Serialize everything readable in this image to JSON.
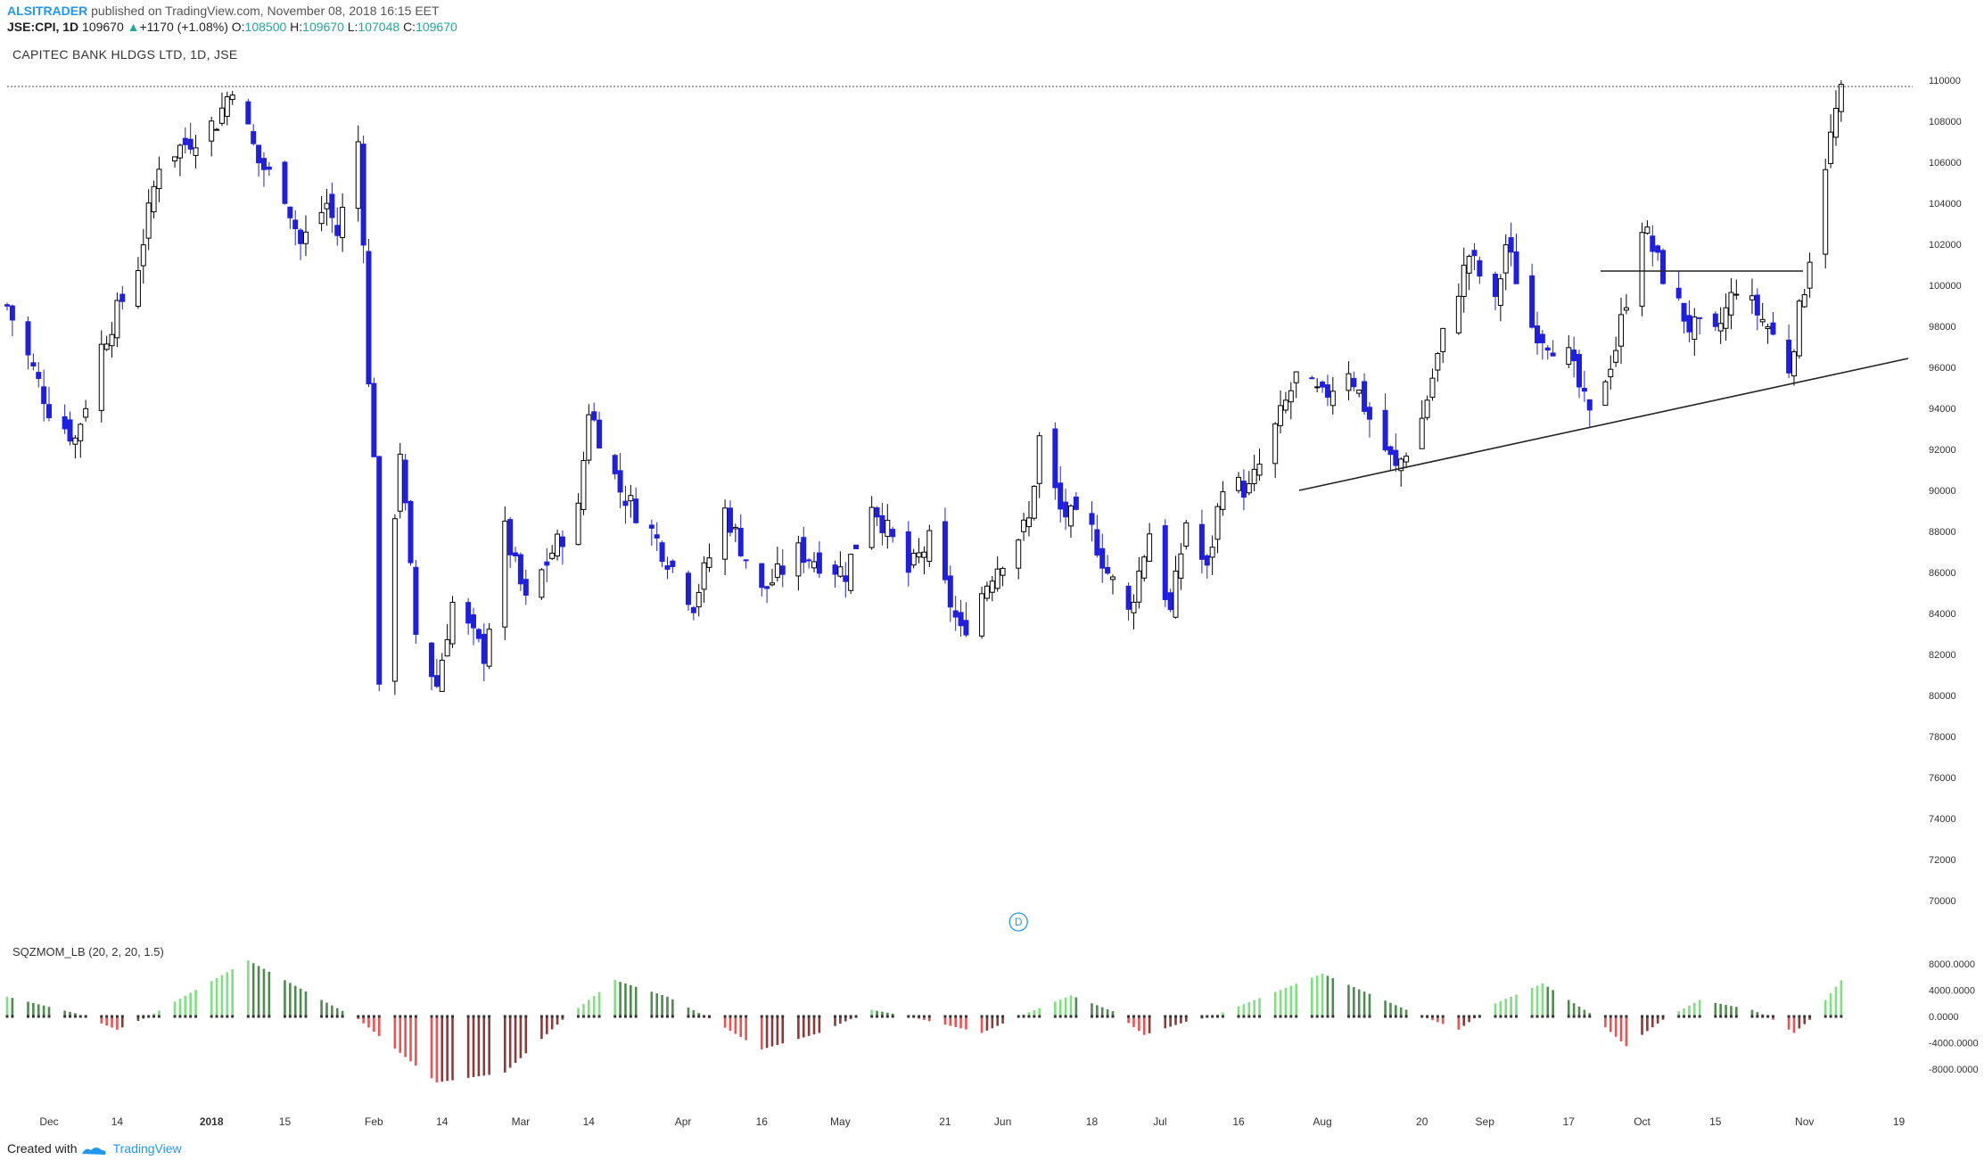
{
  "header": {
    "author": "ALSITRADER",
    "published": "published on TradingView.com, November 08, 2018 16:15 EET",
    "symbol": "JSE:CPI, 1D",
    "last": "109670",
    "change": "+1170 (+1.08%)",
    "o_label": "O:",
    "o_value": "108500",
    "h_label": "H:",
    "h_value": "109670",
    "l_label": "L:",
    "l_value": "107048",
    "c_label": "C:",
    "c_value": "109670"
  },
  "chart_title": "CAPITEC BANK HLDGS LTD, 1D, JSE",
  "indicator_label": "SQZMOM_LB (20, 2, 20, 1.5)",
  "footer": {
    "created_with": "Created with",
    "brand": "TradingView"
  },
  "dividend_markers": [
    {
      "label": "D",
      "day": 193
    },
    {
      "label": "D",
      "day": 501
    }
  ],
  "colors": {
    "bull_body": "#ffffff",
    "bear_body": "#1f1fe0",
    "wick": "#000000",
    "mom_lime": "#7ee07e",
    "mom_green": "#4f8a4f",
    "mom_red": "#f05050",
    "mom_maroon": "#8b3a3a",
    "accent": "#2196f3"
  },
  "chart_data": [
    {
      "type": "candlestick",
      "title": "CAPITEC BANK HLDGS LTD, 1D, JSE",
      "ylim": [
        70000,
        110000
      ],
      "yticks": [
        110000,
        108000,
        106000,
        104000,
        102000,
        100000,
        98000,
        96000,
        94000,
        92000,
        90000,
        88000,
        86000,
        84000,
        82000,
        80000,
        78000,
        76000,
        74000,
        72000,
        70000
      ],
      "xlim": [
        "2017-11-23",
        "2018-11-23"
      ],
      "xticks": [
        {
          "label": "Dec",
          "date": "2017-12-01"
        },
        {
          "label": "14",
          "date": "2017-12-14"
        },
        {
          "label": "2018",
          "date": "2018-01-01",
          "bold": true
        },
        {
          "label": "15",
          "date": "2018-01-15"
        },
        {
          "label": "Feb",
          "date": "2018-02-01"
        },
        {
          "label": "14",
          "date": "2018-02-14"
        },
        {
          "label": "Mar",
          "date": "2018-03-01"
        },
        {
          "label": "14",
          "date": "2018-03-14"
        },
        {
          "label": "Apr",
          "date": "2018-04-01"
        },
        {
          "label": "16",
          "date": "2018-04-16"
        },
        {
          "label": "May",
          "date": "2018-05-01"
        },
        {
          "label": "21",
          "date": "2018-05-21"
        },
        {
          "label": "Jun",
          "date": "2018-06-01"
        },
        {
          "label": "18",
          "date": "2018-06-18"
        },
        {
          "label": "Jul",
          "date": "2018-07-01"
        },
        {
          "label": "16",
          "date": "2018-07-16"
        },
        {
          "label": "Aug",
          "date": "2018-08-01"
        },
        {
          "label": "20",
          "date": "2018-08-20"
        },
        {
          "label": "Sep",
          "date": "2018-09-01"
        },
        {
          "label": "17",
          "date": "2018-09-17"
        },
        {
          "label": "Oct",
          "date": "2018-10-01"
        },
        {
          "label": "15",
          "date": "2018-10-15"
        },
        {
          "label": "Nov",
          "date": "2018-11-01"
        },
        {
          "label": "19",
          "date": "2018-11-19"
        }
      ],
      "anchors": [
        {
          "date": "2017-11-23",
          "close": 99000
        },
        {
          "date": "2017-12-01",
          "close": 94000
        },
        {
          "date": "2017-12-06",
          "close": 92500
        },
        {
          "date": "2017-12-11",
          "close": 97000
        },
        {
          "date": "2017-12-18",
          "close": 101000
        },
        {
          "date": "2017-12-22",
          "close": 106000
        },
        {
          "date": "2018-01-02",
          "close": 108000
        },
        {
          "date": "2018-01-05",
          "close": 109800
        },
        {
          "date": "2018-01-10",
          "close": 106000
        },
        {
          "date": "2018-01-15",
          "close": 104500
        },
        {
          "date": "2018-01-18",
          "close": 102000
        },
        {
          "date": "2018-01-23",
          "close": 104000
        },
        {
          "date": "2018-01-25",
          "close": 102500
        },
        {
          "date": "2018-01-29",
          "close": 107000
        },
        {
          "date": "2018-01-30",
          "close": 102500
        },
        {
          "date": "2018-01-31",
          "close": 95000
        },
        {
          "date": "2018-02-01",
          "close": 92000
        },
        {
          "date": "2018-02-02",
          "close": 80000
        },
        {
          "date": "2018-02-06",
          "close": 92000
        },
        {
          "date": "2018-02-09",
          "close": 83000
        },
        {
          "date": "2018-02-13",
          "close": 80500
        },
        {
          "date": "2018-02-16",
          "close": 84500
        },
        {
          "date": "2018-02-22",
          "close": 82000
        },
        {
          "date": "2018-02-26",
          "close": 88000
        },
        {
          "date": "2018-03-02",
          "close": 84500
        },
        {
          "date": "2018-03-07",
          "close": 87000
        },
        {
          "date": "2018-03-12",
          "close": 89000
        },
        {
          "date": "2018-03-14",
          "close": 94000
        },
        {
          "date": "2018-03-20",
          "close": 90000
        },
        {
          "date": "2018-03-26",
          "close": 88000
        },
        {
          "date": "2018-04-03",
          "close": 84500
        },
        {
          "date": "2018-04-09",
          "close": 89000
        },
        {
          "date": "2018-04-16",
          "close": 85000
        },
        {
          "date": "2018-04-23",
          "close": 87000
        },
        {
          "date": "2018-05-02",
          "close": 86000
        },
        {
          "date": "2018-05-07",
          "close": 89500
        },
        {
          "date": "2018-05-14",
          "close": 86000
        },
        {
          "date": "2018-05-18",
          "close": 87500
        },
        {
          "date": "2018-05-24",
          "close": 83000
        },
        {
          "date": "2018-05-30",
          "close": 86000
        },
        {
          "date": "2018-06-06",
          "close": 88500
        },
        {
          "date": "2018-06-08",
          "close": 92500
        },
        {
          "date": "2018-06-12",
          "close": 89000
        },
        {
          "date": "2018-06-18",
          "close": 88000
        },
        {
          "date": "2018-06-21",
          "close": 86000
        },
        {
          "date": "2018-06-25",
          "close": 84000
        },
        {
          "date": "2018-06-29",
          "close": 88000
        },
        {
          "date": "2018-07-03",
          "close": 84000
        },
        {
          "date": "2018-07-06",
          "close": 88500
        },
        {
          "date": "2018-07-10",
          "close": 86000
        },
        {
          "date": "2018-07-13",
          "close": 90500
        },
        {
          "date": "2018-07-18",
          "close": 90000
        },
        {
          "date": "2018-07-23",
          "close": 93000
        },
        {
          "date": "2018-07-27",
          "close": 95500
        },
        {
          "date": "2018-08-01",
          "close": 94500
        },
        {
          "date": "2018-08-06",
          "close": 96000
        },
        {
          "date": "2018-08-10",
          "close": 93500
        },
        {
          "date": "2018-08-15",
          "close": 91000
        },
        {
          "date": "2018-08-20",
          "close": 93500
        },
        {
          "date": "2018-08-24",
          "close": 97500
        },
        {
          "date": "2018-08-29",
          "close": 101500
        },
        {
          "date": "2018-09-03",
          "close": 99000
        },
        {
          "date": "2018-09-05",
          "close": 102000
        },
        {
          "date": "2018-09-10",
          "close": 98000
        },
        {
          "date": "2018-09-17",
          "close": 96500
        },
        {
          "date": "2018-09-21",
          "close": 93500
        },
        {
          "date": "2018-09-26",
          "close": 97000
        },
        {
          "date": "2018-10-01",
          "close": 103000
        },
        {
          "date": "2018-10-05",
          "close": 100500
        },
        {
          "date": "2018-10-10",
          "close": 98000
        },
        {
          "date": "2018-10-15",
          "close": 97500
        },
        {
          "date": "2018-10-19",
          "close": 100000
        },
        {
          "date": "2018-10-25",
          "close": 98000
        },
        {
          "date": "2018-10-29",
          "close": 96000
        },
        {
          "date": "2018-11-01",
          "close": 100000
        },
        {
          "date": "2018-11-05",
          "close": 106000
        },
        {
          "date": "2018-11-08",
          "close": 109670
        }
      ]
    },
    {
      "type": "bar",
      "title": "SQZMOM_LB (20, 2, 20, 1.5)",
      "ylim": [
        -10000,
        10000
      ],
      "yticks": [
        8000,
        4000,
        0,
        -4000,
        -8000
      ],
      "anchors": [
        {
          "date": "2017-11-23",
          "value": 3000
        },
        {
          "date": "2017-12-06",
          "value": 500
        },
        {
          "date": "2017-12-14",
          "value": -2000
        },
        {
          "date": "2017-12-20",
          "value": 0
        },
        {
          "date": "2018-01-08",
          "value": 8500
        },
        {
          "date": "2018-01-22",
          "value": 2500
        },
        {
          "date": "2018-01-29",
          "value": -400
        },
        {
          "date": "2018-02-13",
          "value": -10000
        },
        {
          "date": "2018-02-26",
          "value": -8500
        },
        {
          "date": "2018-03-09",
          "value": -500
        },
        {
          "date": "2018-03-19",
          "value": 5500
        },
        {
          "date": "2018-03-29",
          "value": 3000
        },
        {
          "date": "2018-04-06",
          "value": -300
        },
        {
          "date": "2018-04-16",
          "value": -5000
        },
        {
          "date": "2018-04-27",
          "value": -2500
        },
        {
          "date": "2018-05-07",
          "value": 1000
        },
        {
          "date": "2018-05-14",
          "value": 0
        },
        {
          "date": "2018-05-28",
          "value": -2500
        },
        {
          "date": "2018-06-04",
          "value": 0
        },
        {
          "date": "2018-06-14",
          "value": 3200
        },
        {
          "date": "2018-06-22",
          "value": 800
        },
        {
          "date": "2018-06-28",
          "value": -2800
        },
        {
          "date": "2018-07-06",
          "value": -800
        },
        {
          "date": "2018-07-11",
          "value": 0
        },
        {
          "date": "2018-08-01",
          "value": 6500
        },
        {
          "date": "2018-08-20",
          "value": 0
        },
        {
          "date": "2018-08-27",
          "value": -2000
        },
        {
          "date": "2018-09-03",
          "value": 2000
        },
        {
          "date": "2018-09-12",
          "value": 5000
        },
        {
          "date": "2018-09-21",
          "value": 500
        },
        {
          "date": "2018-09-28",
          "value": -4500
        },
        {
          "date": "2018-10-05",
          "value": -500
        },
        {
          "date": "2018-10-12",
          "value": 2500
        },
        {
          "date": "2018-10-22",
          "value": 1000
        },
        {
          "date": "2018-10-25",
          "value": 0
        },
        {
          "date": "2018-10-30",
          "value": -2500
        },
        {
          "date": "2018-11-02",
          "value": -500
        },
        {
          "date": "2018-11-08",
          "value": 5500
        }
      ]
    }
  ]
}
